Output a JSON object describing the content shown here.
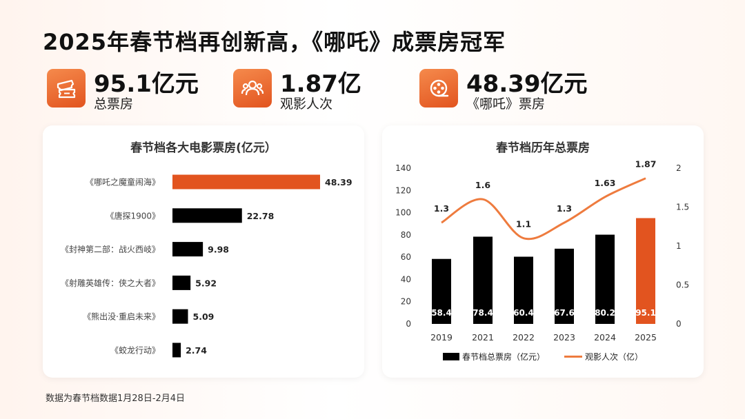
{
  "title": "2025年春节档再创新高，《哪吒》成票房冠军",
  "stats": [
    {
      "value": "95.1亿元",
      "label": "总票房",
      "icon": "ticket-icon"
    },
    {
      "value": "1.87亿",
      "label": "观影人次",
      "icon": "audience-icon"
    },
    {
      "value": "48.39亿元",
      "label": "《哪吒》票房",
      "icon": "film-reel-icon"
    }
  ],
  "colors": {
    "accent": "#e2541f",
    "bar": "#000000",
    "line": "#ee7b3e"
  },
  "footnote": "数据为春节档数据1月28日-2月4日",
  "chart_data": [
    {
      "type": "bar",
      "orientation": "horizontal",
      "title": "春节档各大电影票房(亿元）",
      "categories": [
        "《哪吒之魔童闹海》",
        "《唐探1900》",
        "《封神第二部：战火西岐》",
        "《射雕英雄传：侠之大者》",
        "《熊出没·重启未来》",
        "《蛟龙行动》"
      ],
      "values": [
        48.39,
        22.78,
        9.98,
        5.92,
        5.09,
        2.74
      ],
      "value_labels": [
        "48.39",
        "22.78",
        "9.98",
        "5.92",
        "5.09",
        "2.74"
      ],
      "highlight_index": 0,
      "xlim": [
        0,
        48.39
      ]
    },
    {
      "type": "bar+line",
      "title": "春节档历年总票房",
      "categories": [
        "2019",
        "2021",
        "2022",
        "2023",
        "2024",
        "2025"
      ],
      "series": [
        {
          "name": "春节档总票房（亿元）",
          "type": "bar",
          "axis": "left",
          "values": [
            58.4,
            78.4,
            60.4,
            67.6,
            80.2,
            95.1
          ],
          "labels": [
            "58.4",
            "78.4",
            "60.4",
            "67.6",
            "80.2",
            "95.1"
          ]
        },
        {
          "name": "观影人次（亿）",
          "type": "line",
          "axis": "right",
          "values": [
            1.3,
            1.6,
            1.1,
            1.3,
            1.63,
            1.87
          ],
          "labels": [
            "1.3",
            "1.6",
            "1.1",
            "1.3",
            "1.63",
            "1.87"
          ]
        }
      ],
      "highlight_index": 5,
      "ylim_left": [
        0,
        140
      ],
      "ylim_right": [
        0,
        2
      ],
      "yticks_left": [
        "0",
        "20",
        "40",
        "60",
        "80",
        "100",
        "120",
        "140"
      ],
      "yticks_right": [
        "0",
        "0.5",
        "1",
        "1.5",
        "2"
      ],
      "legend_position": "bottom"
    }
  ]
}
